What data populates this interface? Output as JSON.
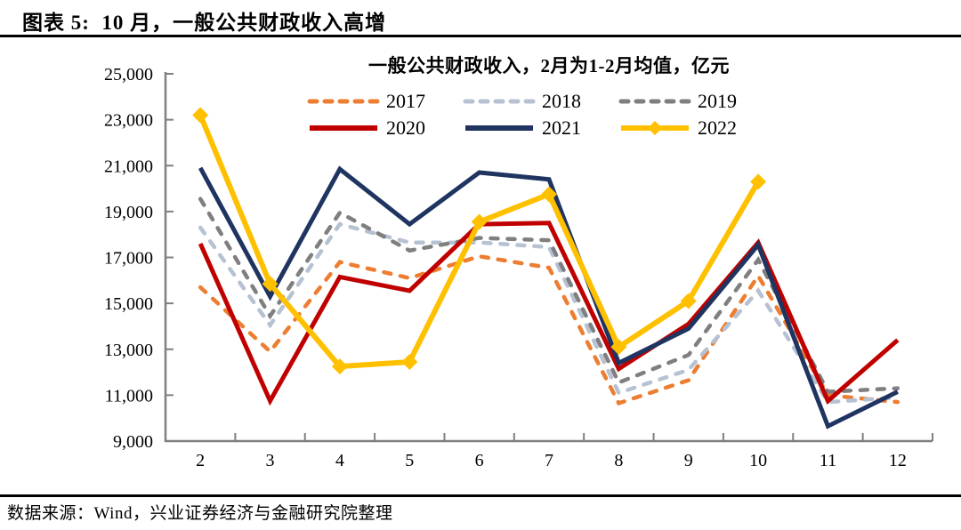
{
  "header": {
    "title": "图表 5:  10 月，一般公共财政收入高增"
  },
  "chart_data": {
    "type": "line",
    "title": "一般公共财政收入，2月为1-2月均值，亿元",
    "x": [
      2,
      3,
      4,
      5,
      6,
      7,
      8,
      9,
      10,
      11,
      12
    ],
    "xlabel": "",
    "ylabel": "",
    "unit": "亿元",
    "ylim": [
      9000,
      25000
    ],
    "y_ticks": [
      9000,
      11000,
      13000,
      15000,
      17000,
      19000,
      21000,
      23000,
      25000
    ],
    "grid": false,
    "legend_position": "top-center",
    "axis_color": "#808080",
    "series": [
      {
        "name": "2017",
        "color": "#ED7D31",
        "style": "dashed",
        "values": [
          15700,
          12900,
          16800,
          16100,
          17050,
          16550,
          10650,
          11650,
          16200,
          11000,
          10700
        ]
      },
      {
        "name": "2018",
        "color": "#B6C1D2",
        "style": "dashed",
        "values": [
          18300,
          14050,
          18450,
          17650,
          17650,
          17450,
          11100,
          12100,
          15550,
          10700,
          10900
        ]
      },
      {
        "name": "2019",
        "color": "#7F7F7F",
        "style": "dashed",
        "values": [
          19550,
          14450,
          18950,
          17300,
          17850,
          17750,
          11550,
          12750,
          16900,
          11150,
          11300
        ]
      },
      {
        "name": "2020",
        "color": "#C00000",
        "style": "solid",
        "values": [
          17600,
          10750,
          16150,
          15550,
          18450,
          18500,
          12150,
          14100,
          17650,
          10750,
          13400
        ]
      },
      {
        "name": "2021",
        "color": "#1F3460",
        "style": "solid",
        "values": [
          20900,
          15300,
          20850,
          18450,
          20700,
          20400,
          12400,
          13900,
          17550,
          9650,
          11150
        ]
      },
      {
        "name": "2022",
        "color": "#FFC000",
        "style": "solid-diamond",
        "values": [
          23200,
          15850,
          12250,
          12450,
          18550,
          19750,
          13100,
          15100,
          20300
        ]
      }
    ]
  },
  "footer": {
    "source": "数据来源：Wind，兴业证券经济与金融研究院整理"
  }
}
